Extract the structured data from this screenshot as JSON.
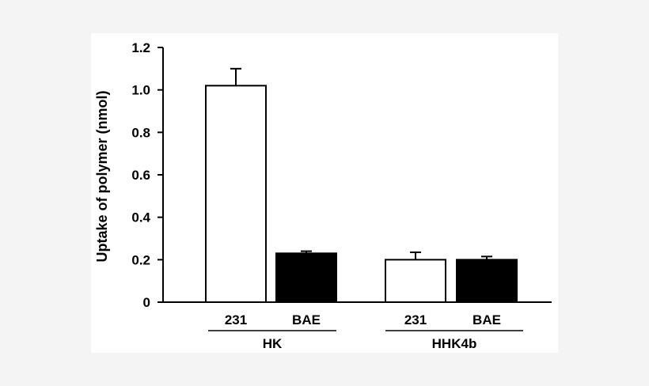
{
  "chart_data": {
    "type": "bar",
    "ylabel": "Uptake of polymer (nmol)",
    "ylim": [
      0,
      1.2
    ],
    "yticks": [
      "0",
      "0.2",
      "0.4",
      "0.6",
      "0.8",
      "1.0",
      "1.2"
    ],
    "ytick_values": [
      0,
      0.2,
      0.4,
      0.6,
      0.8,
      1.0,
      1.2
    ],
    "groups": [
      {
        "name": "HK",
        "bars": [
          {
            "label": "231",
            "value": 1.02,
            "error": 0.08,
            "fill": "#ffffff"
          },
          {
            "label": "BAE",
            "value": 0.23,
            "error": 0.01,
            "fill": "#000000"
          }
        ]
      },
      {
        "name": "HHK4b",
        "bars": [
          {
            "label": "231",
            "value": 0.2,
            "error": 0.035,
            "fill": "#ffffff"
          },
          {
            "label": "BAE",
            "value": 0.2,
            "error": 0.015,
            "fill": "#000000"
          }
        ]
      }
    ],
    "grid": false,
    "legend": "none"
  }
}
